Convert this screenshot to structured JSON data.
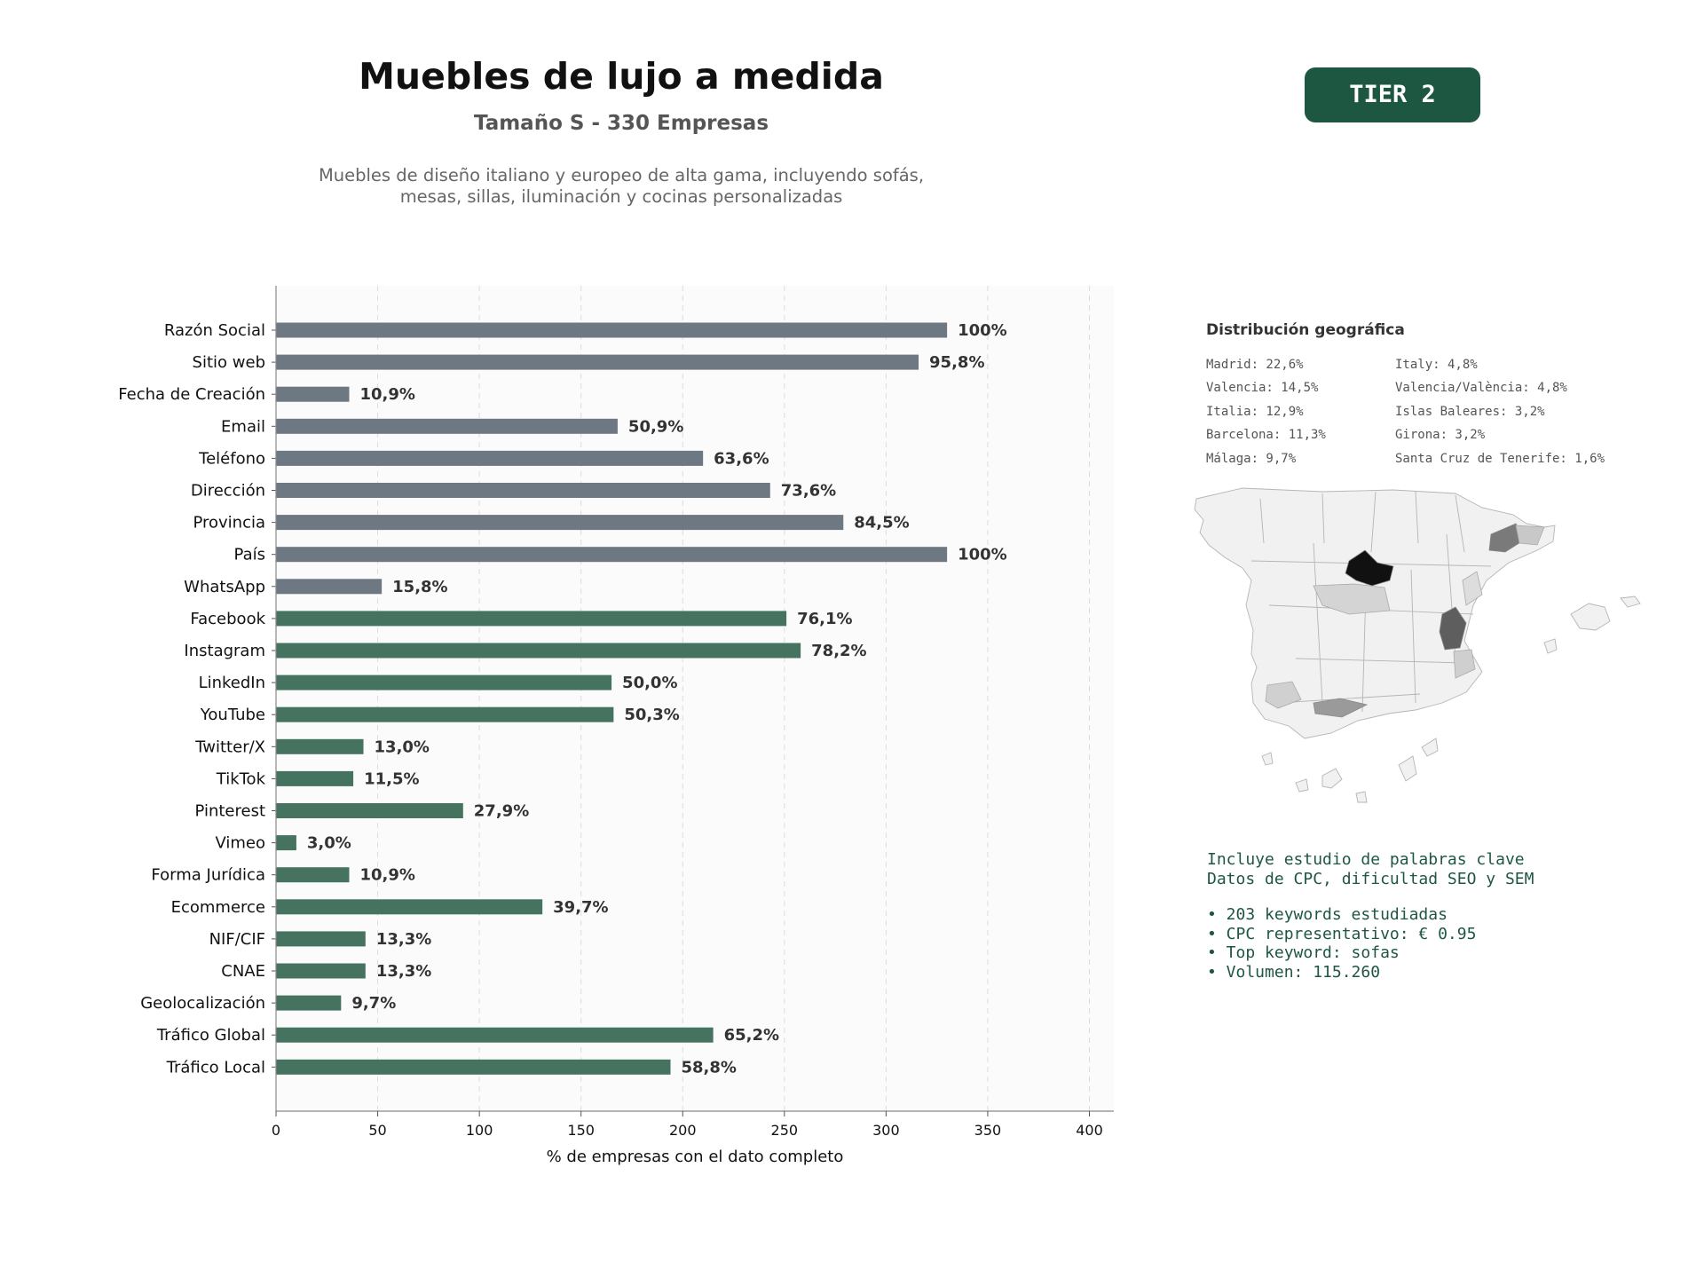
{
  "header": {
    "title": "Muebles de lujo a medida",
    "subtitle": "Tamaño S - 330 Empresas",
    "description_line1": "Muebles de diseño italiano y europeo de alta gama, incluyendo sofás,",
    "description_line2": "mesas, sillas, iluminación y cocinas personalizadas",
    "tier_badge": "TIER 2"
  },
  "colors": {
    "gray_bar": "#6e7883",
    "green_bar": "#45735f",
    "badge": "#1e5741",
    "plot_bg": "#fbfbfb"
  },
  "chart_data": {
    "type": "bar",
    "orientation": "horizontal",
    "xlabel": "% de empresas con el dato completo",
    "xlim": [
      0,
      412
    ],
    "xticks": [
      0,
      50,
      100,
      150,
      200,
      250,
      300,
      350,
      400
    ],
    "grid": "vertical dashed",
    "categories": [
      "Razón Social",
      "Sitio web",
      "Fecha de Creación",
      "Email",
      "Teléfono",
      "Dirección",
      "Provincia",
      "País",
      "WhatsApp",
      "Facebook",
      "Instagram",
      "LinkedIn",
      "YouTube",
      "Twitter/X",
      "TikTok",
      "Pinterest",
      "Vimeo",
      "Forma Jurídica",
      "Ecommerce",
      "NIF/CIF",
      "CNAE",
      "Geolocalización",
      "Tráfico Global",
      "Tráfico Local"
    ],
    "values": [
      330,
      316,
      36,
      168,
      210,
      243,
      279,
      330,
      52,
      251,
      258,
      165,
      166,
      43,
      38,
      92,
      10,
      36,
      131,
      44,
      44,
      32,
      215,
      194
    ],
    "labels": [
      "100%",
      "95,8%",
      "10,9%",
      "50,9%",
      "63,6%",
      "73,6%",
      "84,5%",
      "100%",
      "15,8%",
      "76,1%",
      "78,2%",
      "50,0%",
      "50,3%",
      "13,0%",
      "11,5%",
      "27,9%",
      "3,0%",
      "10,9%",
      "39,7%",
      "13,3%",
      "13,3%",
      "9,7%",
      "65,2%",
      "58,8%"
    ],
    "groups": [
      "gray",
      "gray",
      "gray",
      "gray",
      "gray",
      "gray",
      "gray",
      "gray",
      "gray",
      "green",
      "green",
      "green",
      "green",
      "green",
      "green",
      "green",
      "green",
      "green",
      "green",
      "green",
      "green",
      "green",
      "green",
      "green"
    ]
  },
  "geo": {
    "title": "Distribución geográfica",
    "col1": [
      "Madrid: 22,6%",
      "Valencia: 14,5%",
      "Italia: 12,9%",
      "Barcelona: 11,3%",
      "Málaga: 9,7%"
    ],
    "col2": [
      "Italy: 4,8%",
      "Valencia/València: 4,8%",
      "Islas Baleares: 3,2%",
      "Girona: 3,2%",
      "Santa Cruz de Tenerife: 1,6%"
    ]
  },
  "keywords": {
    "line1": "Incluye estudio de palabras clave",
    "line2": "Datos de CPC, dificultad SEO y SEM",
    "bullets": [
      "• 203 keywords estudiadas",
      "• CPC representativo: € 0.95",
      "• Top keyword: sofas",
      "• Volumen: 115.260"
    ]
  }
}
